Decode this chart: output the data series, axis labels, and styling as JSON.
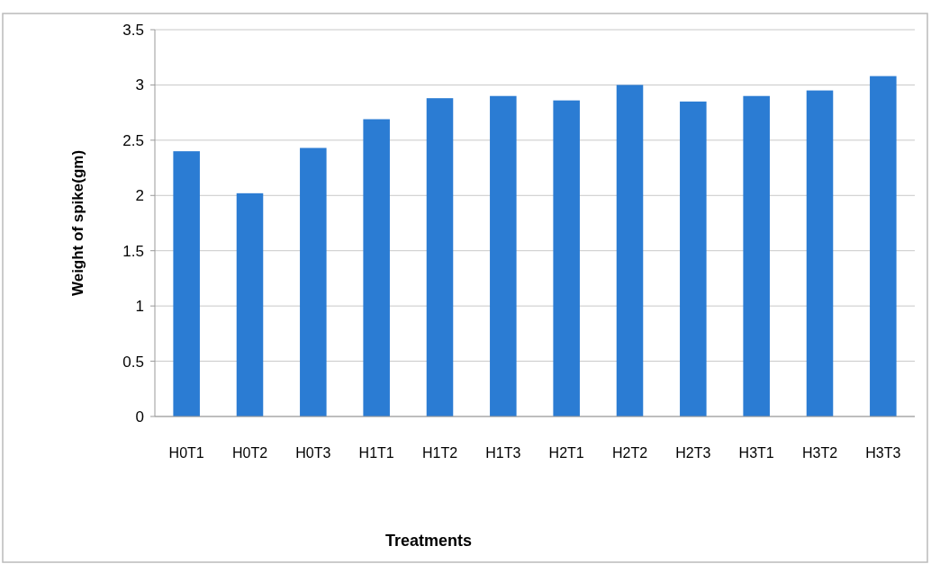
{
  "chart_data": {
    "type": "bar",
    "xlabel": "Treatments",
    "ylabel": "Weight of spike(gm)",
    "categories": [
      "H0T1",
      "H0T2",
      "H0T3",
      "H1T1",
      "H1T2",
      "H1T3",
      "H2T1",
      "H2T2",
      "H2T3",
      "H3T1",
      "H3T2",
      "H3T3"
    ],
    "values": [
      2.4,
      2.02,
      2.43,
      2.69,
      2.88,
      2.9,
      2.86,
      3.0,
      2.85,
      2.9,
      2.95,
      3.08
    ],
    "color": "#2b7cd3",
    "ylim": [
      0,
      3.5
    ],
    "yticks": [
      0,
      0.5,
      1,
      1.5,
      2,
      2.5,
      3,
      3.5
    ],
    "grid": "y"
  }
}
